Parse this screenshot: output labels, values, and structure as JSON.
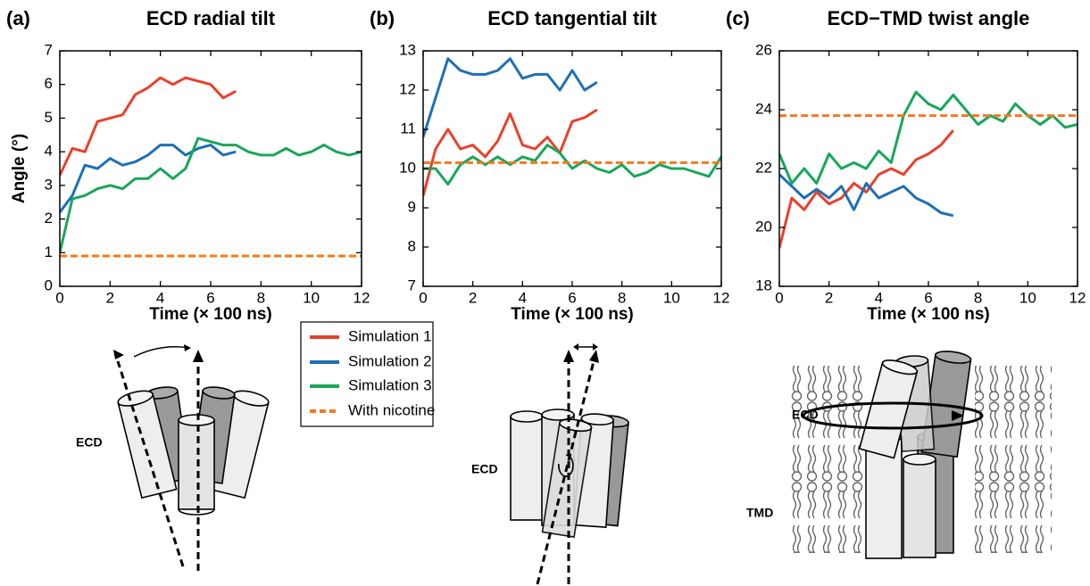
{
  "chart_data": [
    {
      "type": "line",
      "panel_label": "(a)",
      "title": "ECD radial tilt",
      "ylabel": "Angle (°)",
      "xlabel": "Time (× 100 ns)",
      "x": [
        0,
        0.5,
        1,
        1.5,
        2,
        2.5,
        3,
        3.5,
        4,
        4.5,
        5,
        5.5,
        6,
        6.5,
        7,
        7.5,
        8,
        8.5,
        9,
        9.5,
        10,
        10.5,
        11,
        11.5,
        12
      ],
      "xlim": [
        0,
        12
      ],
      "xticks": [
        0,
        2,
        4,
        6,
        8,
        10,
        12
      ],
      "ylim": [
        0,
        7
      ],
      "yticks": [
        0,
        1,
        2,
        3,
        4,
        5,
        6,
        7
      ],
      "series": [
        {
          "name": "Simulation 1",
          "color": "#e8412c",
          "values": [
            3.3,
            4.1,
            4.0,
            4.9,
            5.0,
            5.1,
            5.7,
            5.9,
            6.2,
            6.0,
            6.2,
            6.1,
            6.0,
            5.6,
            5.8,
            null,
            null,
            null,
            null,
            null,
            null,
            null,
            null,
            null,
            null
          ]
        },
        {
          "name": "Simulation 2",
          "color": "#1f6fb5",
          "values": [
            2.2,
            2.7,
            3.6,
            3.5,
            3.8,
            3.6,
            3.7,
            3.9,
            4.2,
            4.2,
            3.9,
            4.1,
            4.2,
            3.9,
            4.0,
            null,
            null,
            null,
            null,
            null,
            null,
            null,
            null,
            null,
            null
          ]
        },
        {
          "name": "Simulation 3",
          "color": "#1aa65a",
          "values": [
            1.0,
            2.6,
            2.7,
            2.9,
            3.0,
            2.9,
            3.2,
            3.2,
            3.5,
            3.2,
            3.5,
            4.4,
            4.3,
            4.2,
            4.2,
            4.0,
            3.9,
            3.9,
            4.1,
            3.9,
            4.0,
            4.2,
            4.0,
            3.9,
            4.0
          ]
        },
        {
          "name": "With nicotine",
          "color": "#f47a1f",
          "dashed": true,
          "x": [
            0,
            12
          ],
          "values": [
            0.9,
            0.9
          ]
        }
      ]
    },
    {
      "type": "line",
      "panel_label": "(b)",
      "title": "ECD tangential tilt",
      "xlabel": "Time (× 100 ns)",
      "x": [
        0,
        0.5,
        1,
        1.5,
        2,
        2.5,
        3,
        3.5,
        4,
        4.5,
        5,
        5.5,
        6,
        6.5,
        7,
        7.5,
        8,
        8.5,
        9,
        9.5,
        10,
        10.5,
        11,
        11.5,
        12
      ],
      "xlim": [
        0,
        12
      ],
      "xticks": [
        0,
        2,
        4,
        6,
        8,
        10,
        12
      ],
      "ylim": [
        7,
        13
      ],
      "yticks": [
        7,
        8,
        9,
        10,
        11,
        12,
        13
      ],
      "series": [
        {
          "color": "#e8412c",
          "values": [
            9.3,
            10.5,
            11.0,
            10.5,
            10.6,
            10.3,
            10.7,
            11.4,
            10.6,
            10.5,
            10.8,
            10.4,
            11.2,
            11.3,
            11.5,
            null,
            null,
            null,
            null,
            null,
            null,
            null,
            null,
            null,
            null
          ]
        },
        {
          "color": "#1f6fb5",
          "values": [
            10.8,
            11.8,
            12.8,
            12.5,
            12.4,
            12.4,
            12.5,
            12.8,
            12.3,
            12.4,
            12.4,
            12.0,
            12.5,
            12.0,
            12.2,
            null,
            null,
            null,
            null,
            null,
            null,
            null,
            null,
            null,
            null
          ]
        },
        {
          "color": "#1aa65a",
          "values": [
            10.0,
            10.0,
            9.6,
            10.1,
            10.3,
            10.1,
            10.3,
            10.1,
            10.3,
            10.2,
            10.6,
            10.4,
            10.0,
            10.2,
            10.0,
            9.9,
            10.1,
            9.8,
            9.9,
            10.1,
            10.0,
            10.0,
            9.9,
            9.8,
            10.3
          ]
        },
        {
          "color": "#f47a1f",
          "dashed": true,
          "x": [
            0,
            12
          ],
          "values": [
            10.15,
            10.15
          ]
        }
      ]
    },
    {
      "type": "line",
      "panel_label": "(c)",
      "title": "ECD−TMD twist angle",
      "xlabel": "Time (× 100 ns)",
      "x": [
        0,
        0.5,
        1,
        1.5,
        2,
        2.5,
        3,
        3.5,
        4,
        4.5,
        5,
        5.5,
        6,
        6.5,
        7,
        7.5,
        8,
        8.5,
        9,
        9.5,
        10,
        10.5,
        11,
        11.5,
        12
      ],
      "xlim": [
        0,
        12
      ],
      "xticks": [
        0,
        2,
        4,
        6,
        8,
        10,
        12
      ],
      "ylim": [
        18,
        26
      ],
      "yticks": [
        18,
        20,
        22,
        24,
        26
      ],
      "series": [
        {
          "color": "#e8412c",
          "values": [
            19.3,
            21.0,
            20.6,
            21.2,
            20.8,
            21.0,
            21.5,
            21.2,
            21.8,
            22.0,
            21.8,
            22.3,
            22.5,
            22.8,
            23.3,
            null,
            null,
            null,
            null,
            null,
            null,
            null,
            null,
            null,
            null
          ]
        },
        {
          "color": "#1f6fb5",
          "values": [
            21.8,
            21.4,
            21.0,
            21.3,
            21.0,
            21.4,
            20.6,
            21.5,
            21.0,
            21.2,
            21.4,
            21.0,
            20.8,
            20.5,
            20.4,
            null,
            null,
            null,
            null,
            null,
            null,
            null,
            null,
            null,
            null
          ]
        },
        {
          "color": "#1aa65a",
          "values": [
            22.5,
            21.5,
            22.0,
            21.5,
            22.5,
            22.0,
            22.2,
            22.0,
            22.6,
            22.2,
            23.8,
            24.6,
            24.2,
            24.0,
            24.5,
            24.0,
            23.5,
            23.8,
            23.6,
            24.2,
            23.8,
            23.5,
            23.8,
            23.4,
            23.5
          ]
        },
        {
          "color": "#f47a1f",
          "dashed": true,
          "x": [
            0,
            12
          ],
          "values": [
            23.8,
            23.8
          ]
        }
      ]
    }
  ],
  "diagram_labels": [
    "ECD",
    "ECD",
    "ECD",
    "TMD"
  ]
}
